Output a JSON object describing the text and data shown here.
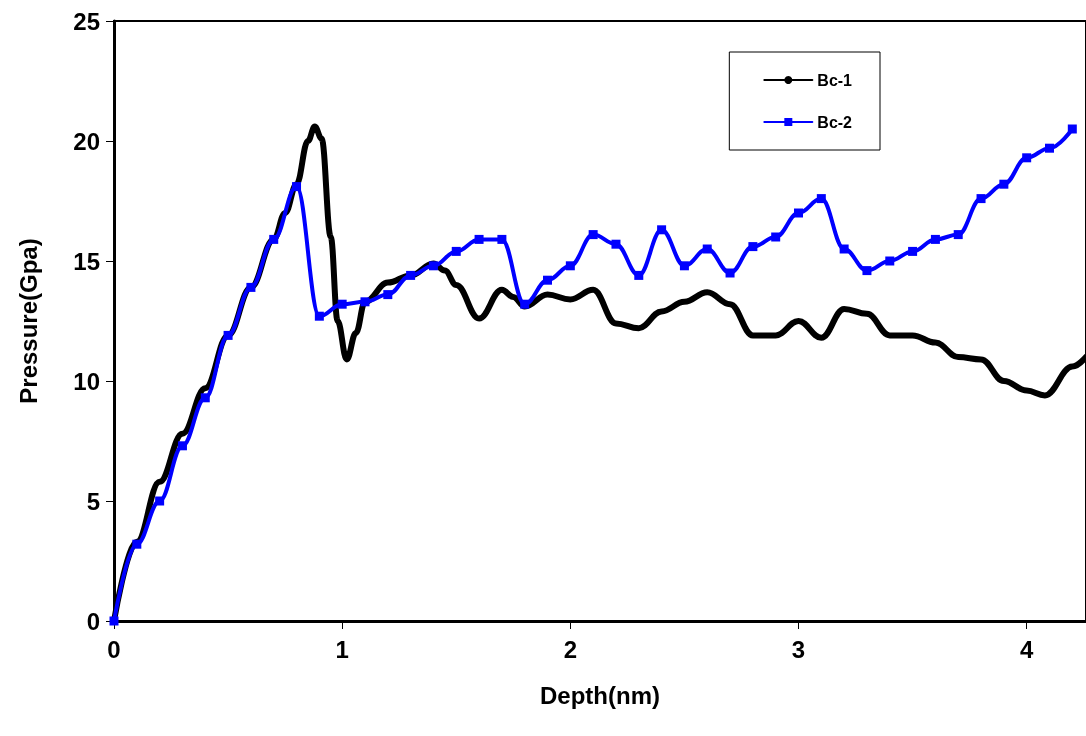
{
  "chart_data": {
    "type": "line",
    "xlabel": "Depth(nm)",
    "ylabel": "Pressure(Gpa)",
    "xlim": [
      0,
      4.26
    ],
    "xticks": [
      0,
      1,
      2,
      3,
      4
    ],
    "ylim": [
      0,
      25
    ],
    "yticks": [
      0,
      5,
      10,
      15,
      20,
      25
    ],
    "grid": false,
    "legend": "top right",
    "series": [
      {
        "name": "Bc-1",
        "color": "#000000",
        "marker": "none",
        "x": [
          0,
          0.1,
          0.2,
          0.3,
          0.4,
          0.5,
          0.6,
          0.7,
          0.75,
          0.8,
          0.85,
          0.88,
          0.91,
          0.95,
          0.98,
          1.02,
          1.06,
          1.1,
          1.2,
          1.3,
          1.4,
          1.45,
          1.5,
          1.6,
          1.7,
          1.75,
          1.8,
          1.9,
          2.0,
          2.1,
          2.2,
          2.3,
          2.4,
          2.5,
          2.6,
          2.7,
          2.8,
          2.9,
          3.0,
          3.1,
          3.2,
          3.3,
          3.4,
          3.5,
          3.6,
          3.7,
          3.8,
          3.9,
          4.0,
          4.08,
          4.2,
          4.26
        ],
        "values": [
          0,
          3.3,
          5.8,
          7.8,
          9.7,
          11.9,
          13.9,
          15.9,
          17,
          18.2,
          20.0,
          20.6,
          20.1,
          16,
          12.5,
          10.9,
          12,
          13.3,
          14.1,
          14.4,
          14.9,
          14.6,
          14.0,
          12.6,
          13.8,
          13.5,
          13.1,
          13.6,
          13.4,
          13.8,
          12.4,
          12.2,
          12.9,
          13.3,
          13.7,
          13.2,
          11.9,
          11.9,
          12.5,
          11.8,
          13.0,
          12.8,
          11.9,
          11.9,
          11.6,
          11.0,
          10.9,
          10.0,
          9.6,
          9.4,
          10.6,
          11.0
        ]
      },
      {
        "name": "Bc-2",
        "color": "#0000ff",
        "marker": "square",
        "x": [
          0,
          0.1,
          0.2,
          0.3,
          0.4,
          0.5,
          0.6,
          0.7,
          0.8,
          0.9,
          1.0,
          1.1,
          1.2,
          1.3,
          1.4,
          1.5,
          1.6,
          1.7,
          1.8,
          1.9,
          2.0,
          2.1,
          2.2,
          2.3,
          2.4,
          2.5,
          2.6,
          2.7,
          2.8,
          2.9,
          3.0,
          3.1,
          3.2,
          3.3,
          3.4,
          3.5,
          3.6,
          3.7,
          3.8,
          3.9,
          4.0,
          4.1,
          4.2
        ],
        "values": [
          0,
          3.2,
          5.0,
          7.3,
          9.3,
          11.9,
          13.9,
          15.9,
          18.1,
          12.7,
          13.2,
          13.3,
          13.6,
          14.4,
          14.8,
          15.4,
          15.9,
          15.9,
          13.2,
          14.2,
          14.8,
          16.1,
          15.7,
          14.4,
          16.3,
          14.8,
          15.5,
          14.5,
          15.6,
          16.0,
          17.0,
          17.6,
          15.5,
          14.6,
          15.0,
          15.4,
          15.9,
          16.1,
          17.6,
          18.2,
          19.3,
          19.7,
          20.5
        ]
      }
    ]
  }
}
